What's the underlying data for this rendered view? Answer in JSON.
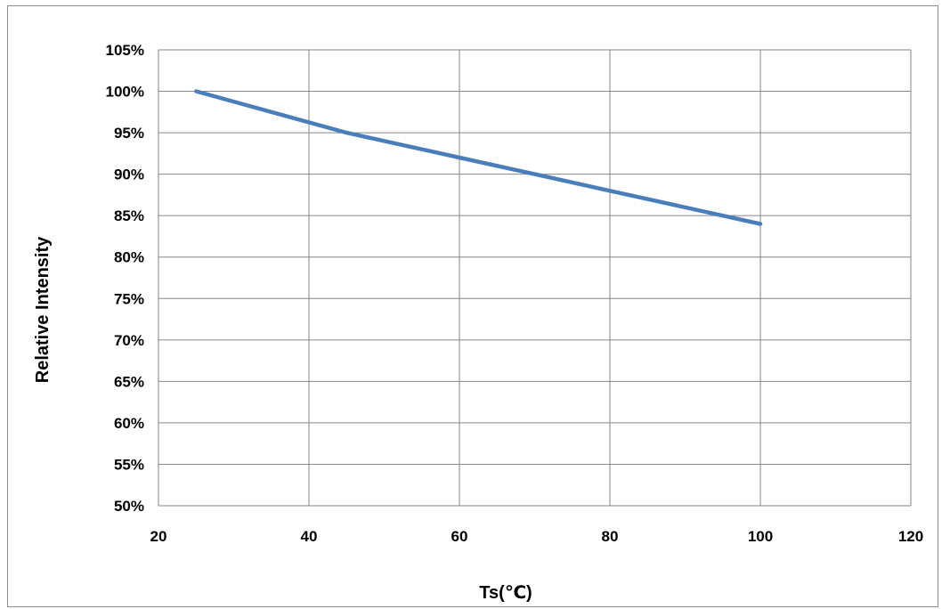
{
  "chart_data": {
    "type": "line",
    "xlabel": "Ts(℃)",
    "ylabel": "Relative Intensity",
    "xlim": [
      20,
      120
    ],
    "ylim": [
      0.5,
      1.05
    ],
    "x_ticks": [
      20,
      40,
      60,
      80,
      100,
      120
    ],
    "y_ticks": [
      0.5,
      0.55,
      0.6,
      0.65,
      0.7,
      0.75,
      0.8,
      0.85,
      0.9,
      0.95,
      1.0,
      1.05
    ],
    "y_tick_labels": [
      "50%",
      "55%",
      "60%",
      "65%",
      "70%",
      "75%",
      "80%",
      "85%",
      "90%",
      "95%",
      "100%",
      "105%"
    ],
    "grid": true,
    "legend": "none",
    "series": [
      {
        "color": "#4a7ebb",
        "x": [
          25,
          45,
          60,
          70,
          80,
          100
        ],
        "y": [
          1.0,
          0.95,
          0.92,
          0.9,
          0.88,
          0.84
        ]
      }
    ]
  }
}
